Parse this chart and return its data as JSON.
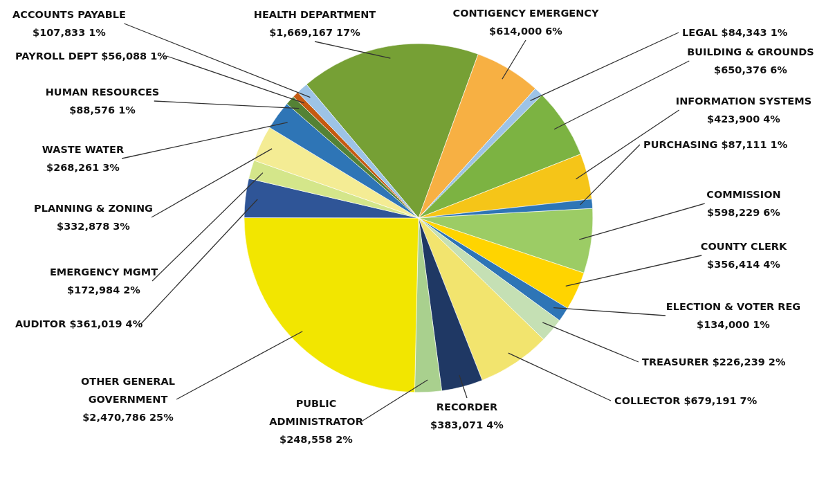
{
  "chart_data": {
    "type": "pie",
    "categories": [
      "HEALTH DEPARTMENT",
      "CONTIGENCY EMERGENCY",
      "LEGAL",
      "BUILDING & GROUNDS",
      "INFORMATION SYSTEMS",
      "PURCHASING",
      "COMMISSION",
      "COUNTY CLERK",
      "ELECTION & VOTER REG",
      "TREASURER",
      "COLLECTOR",
      "RECORDER",
      "PUBLIC ADMINISTRATOR",
      "OTHER GENERAL GOVERNMENT",
      "AUDITOR",
      "EMERGENCY MGMT",
      "PLANNING & ZONING",
      "WASTE WATER",
      "HUMAN RESOURCES",
      "PAYROLL DEPT",
      "ACCOUNTS PAYABLE"
    ],
    "values": [
      1669167,
      614000,
      84343,
      650376,
      423900,
      87111,
      598229,
      356414,
      134000,
      226239,
      679191,
      383071,
      248558,
      2470786,
      361019,
      172984,
      332878,
      268261,
      88576,
      56088,
      107833
    ],
    "value_labels": [
      "$1,669,167 17%",
      "$614,000 6%",
      "$84,343 1%",
      "$650,376 6%",
      "$423,900 4%",
      "$87,111 1%",
      "$598,229 6%",
      "$356,414 4%",
      "$134,000 1%",
      "$226,239 2%",
      "$679,191 7%",
      "$383,071 4%",
      "$248,558 2%",
      "$2,470,786 25%",
      "$361,019 4%",
      "$172,984 2%",
      "$332,878 3%",
      "$268,261 3%",
      "$88,576 1%",
      "$56,088 1%",
      "$107,833 1%"
    ],
    "colors": [
      "#76a035",
      "#f7b043",
      "#9dc3e6",
      "#7cb342",
      "#f5c518",
      "#2e75b6",
      "#9ccc65",
      "#ffd400",
      "#2e75b6",
      "#c5e0b4",
      "#f2e46e",
      "#1f3864",
      "#a9d08e",
      "#f2e600",
      "#2f5597",
      "#d4e68a",
      "#f4ec94",
      "#2e75b6",
      "#548235",
      "#c55a11",
      "#9dc3e6"
    ]
  }
}
